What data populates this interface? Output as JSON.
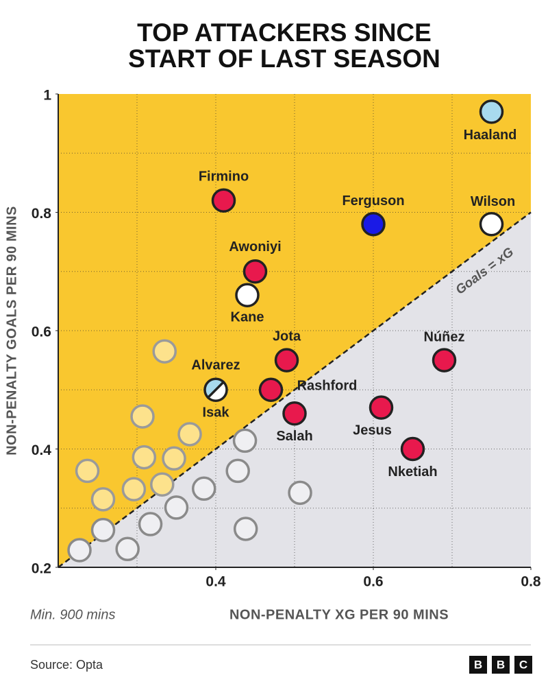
{
  "chart_data": {
    "type": "scatter",
    "title": [
      "TOP ATTACKERS SINCE",
      "START OF LAST SEASON"
    ],
    "x_label": "NON-PENALTY XG PER 90 MINS",
    "y_label": "NON-PENALTY GOALS PER 90 MINS",
    "note": "Min. 900 mins",
    "source": "Source: Opta",
    "logo": [
      "B",
      "B",
      "C"
    ],
    "xlim": [
      0.2,
      0.8
    ],
    "ylim": [
      0.2,
      1
    ],
    "xticks": [
      0.4,
      0.6,
      0.8
    ],
    "yticks": [
      0.2,
      0.4,
      0.6,
      0.8,
      1
    ],
    "x_grid": [
      0.3,
      0.4,
      0.5,
      0.6,
      0.7
    ],
    "y_grid": [
      0.3,
      0.4,
      0.5,
      0.6,
      0.7,
      0.8,
      0.9
    ],
    "above_color": "#f9c72f",
    "below_color": "#e3e3e8",
    "reference_line": {
      "label": "Goals = xG"
    },
    "points": [
      {
        "label": "Haaland",
        "x": 0.75,
        "y": 0.97,
        "color": "#a8daee",
        "edge": "#222"
      },
      {
        "label": "Firmino",
        "x": 0.41,
        "y": 0.82,
        "color": "#e8194d",
        "edge": "#222"
      },
      {
        "label": "Ferguson",
        "x": 0.6,
        "y": 0.78,
        "color": "#1a1ae6",
        "edge": "#222"
      },
      {
        "label": "Wilson",
        "x": 0.75,
        "y": 0.78,
        "color": "#ffffff",
        "edge": "#222"
      },
      {
        "label": "Awoniyi",
        "x": 0.45,
        "y": 0.7,
        "color": "#e8194d",
        "edge": "#222"
      },
      {
        "label": "Kane",
        "x": 0.44,
        "y": 0.66,
        "color": "#ffffff",
        "edge": "#222"
      },
      {
        "label": "Jota",
        "x": 0.49,
        "y": 0.55,
        "color": "#e8194d",
        "edge": "#222"
      },
      {
        "label": "Núñez",
        "x": 0.69,
        "y": 0.55,
        "color": "#e8194d",
        "edge": "#222"
      },
      {
        "label": "Alvarez",
        "x": 0.4,
        "y": 0.5,
        "color": "#a8daee",
        "edge": "#222"
      },
      {
        "label": "Isak",
        "x": 0.4,
        "y": 0.5,
        "color": "#ffffff",
        "edge": "#222"
      },
      {
        "label": "Rashford",
        "x": 0.47,
        "y": 0.5,
        "color": "#e8194d",
        "edge": "#222"
      },
      {
        "label": "Salah",
        "x": 0.5,
        "y": 0.46,
        "color": "#e8194d",
        "edge": "#222"
      },
      {
        "label": "Jesus",
        "x": 0.61,
        "y": 0.47,
        "color": "#e8194d",
        "edge": "#222"
      },
      {
        "label": "Nketiah",
        "x": 0.65,
        "y": 0.4,
        "color": "#e8194d",
        "edge": "#222"
      },
      {
        "x": 0.335,
        "y": 0.565,
        "color": "#fde28c",
        "edge": "#9a9a9a"
      },
      {
        "x": 0.307,
        "y": 0.455,
        "color": "#fde28c",
        "edge": "#9a9a9a"
      },
      {
        "x": 0.367,
        "y": 0.425,
        "color": "#fde28c",
        "edge": "#9a9a9a"
      },
      {
        "x": 0.309,
        "y": 0.386,
        "color": "#fde28c",
        "edge": "#9a9a9a"
      },
      {
        "x": 0.347,
        "y": 0.384,
        "color": "#fde28c",
        "edge": "#9a9a9a"
      },
      {
        "x": 0.237,
        "y": 0.363,
        "color": "#fde28c",
        "edge": "#9a9a9a"
      },
      {
        "x": 0.257,
        "y": 0.315,
        "color": "#fde28c",
        "edge": "#9a9a9a"
      },
      {
        "x": 0.296,
        "y": 0.332,
        "color": "#fde28c",
        "edge": "#9a9a9a"
      },
      {
        "x": 0.332,
        "y": 0.34,
        "color": "#fde28c",
        "edge": "#9a9a9a"
      },
      {
        "x": 0.437,
        "y": 0.414,
        "color": "#efeff2",
        "edge": "#8a8a8a"
      },
      {
        "x": 0.428,
        "y": 0.363,
        "color": "#efeff2",
        "edge": "#8a8a8a"
      },
      {
        "x": 0.385,
        "y": 0.333,
        "color": "#efeff2",
        "edge": "#8a8a8a"
      },
      {
        "x": 0.35,
        "y": 0.301,
        "color": "#efeff2",
        "edge": "#8a8a8a"
      },
      {
        "x": 0.317,
        "y": 0.273,
        "color": "#efeff2",
        "edge": "#8a8a8a"
      },
      {
        "x": 0.257,
        "y": 0.263,
        "color": "#efeff2",
        "edge": "#8a8a8a"
      },
      {
        "x": 0.227,
        "y": 0.229,
        "color": "#efeff2",
        "edge": "#8a8a8a"
      },
      {
        "x": 0.288,
        "y": 0.231,
        "color": "#efeff2",
        "edge": "#8a8a8a"
      },
      {
        "x": 0.438,
        "y": 0.265,
        "color": "#efeff2",
        "edge": "#8a8a8a"
      },
      {
        "x": 0.507,
        "y": 0.326,
        "color": "#efeff2",
        "edge": "#8a8a8a"
      }
    ]
  }
}
